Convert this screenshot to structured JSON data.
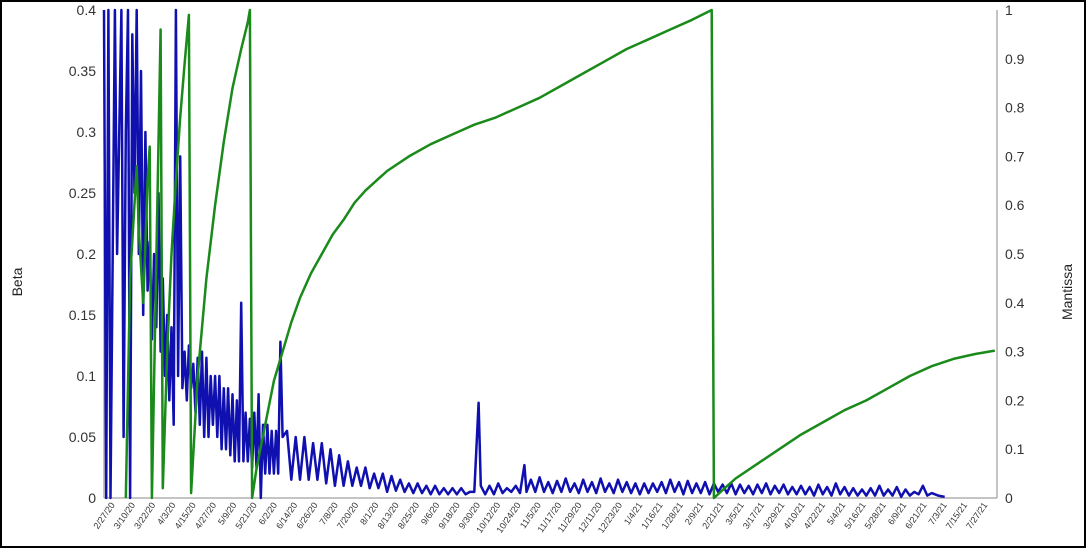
{
  "chart_data": {
    "type": "line",
    "title": "",
    "xlabel": "",
    "ylabel": "Beta",
    "y2label": "Mantissa",
    "ylim": [
      0,
      0.4
    ],
    "y2lim": [
      0,
      1
    ],
    "grid": false,
    "yticks": [
      "0",
      "0.05",
      "0.1",
      "0.15",
      "0.2",
      "0.25",
      "0.3",
      "0.35",
      "0.4"
    ],
    "y2ticks": [
      "0",
      "0.1",
      "0.2",
      "0.3",
      "0.4",
      "0.5",
      "0.6",
      "0.7",
      "0.8",
      "0.9",
      "1"
    ],
    "xticks": [
      "2/27/20",
      "3/10/20",
      "3/22/20",
      "4/3/20",
      "4/15/20",
      "4/27/20",
      "5/9/20",
      "5/21/20",
      "6/2/20",
      "6/14/20",
      "6/26/20",
      "7/8/20",
      "7/20/20",
      "8/1/20",
      "8/13/20",
      "8/25/20",
      "9/6/20",
      "9/18/20",
      "9/30/20",
      "10/12/20",
      "10/24/20",
      "11/5/20",
      "11/17/20",
      "11/29/20",
      "12/11/20",
      "12/23/20",
      "1/4/21",
      "1/16/21",
      "1/28/21",
      "2/9/21",
      "2/21/21",
      "3/5/21",
      "3/17/21",
      "3/29/21",
      "4/10/21",
      "4/22/21",
      "5/4/21",
      "5/16/21",
      "5/28/21",
      "6/9/21",
      "6/21/21",
      "7/3/21",
      "7/15/21",
      "7/27/21"
    ],
    "series": [
      {
        "name": "Beta",
        "axis": "left",
        "color": "#1010b0",
        "points": [
          [
            0,
            0.4
          ],
          [
            1,
            0
          ],
          [
            2,
            0.4
          ],
          [
            3,
            0
          ],
          [
            5,
            0.4
          ],
          [
            6,
            0.2
          ],
          [
            8,
            0.4
          ],
          [
            9,
            0.05
          ],
          [
            10,
            0.3
          ],
          [
            11,
            0.4
          ],
          [
            12,
            0
          ],
          [
            13,
            0.38
          ],
          [
            14,
            0.25
          ],
          [
            15,
            0.4
          ],
          [
            16,
            0.2
          ],
          [
            17,
            0.35
          ],
          [
            18,
            0.15
          ],
          [
            19,
            0.3
          ],
          [
            20,
            0.17
          ],
          [
            21,
            0.21
          ],
          [
            22,
            0.13
          ],
          [
            23,
            0.2
          ],
          [
            24,
            0.14
          ],
          [
            25,
            0.25
          ],
          [
            26,
            0.12
          ],
          [
            27,
            0.18
          ],
          [
            28,
            0.1
          ],
          [
            29,
            0.15
          ],
          [
            30,
            0.08
          ],
          [
            31,
            0.14
          ],
          [
            32,
            0.06
          ],
          [
            33,
            0.4
          ],
          [
            34,
            0.1
          ],
          [
            35,
            0.28
          ],
          [
            36,
            0.09
          ],
          [
            37,
            0.12
          ],
          [
            38,
            0.08
          ],
          [
            39,
            0.125
          ],
          [
            40,
            0.09
          ],
          [
            41,
            0.11
          ],
          [
            42,
            0.07
          ],
          [
            43,
            0.115
          ],
          [
            44,
            0.06
          ],
          [
            45,
            0.12
          ],
          [
            46,
            0.05
          ],
          [
            47,
            0.115
          ],
          [
            48,
            0.05
          ],
          [
            49,
            0.1
          ],
          [
            50,
            0.06
          ],
          [
            51,
            0.1
          ],
          [
            52,
            0.05
          ],
          [
            53,
            0.1
          ],
          [
            54,
            0.04
          ],
          [
            55,
            0.09
          ],
          [
            56,
            0.04
          ],
          [
            57,
            0.09
          ],
          [
            58,
            0.035
          ],
          [
            59,
            0.085
          ],
          [
            60,
            0.03
          ],
          [
            61,
            0.08
          ],
          [
            62,
            0.03
          ],
          [
            63,
            0.16
          ],
          [
            64,
            0.03
          ],
          [
            65,
            0.07
          ],
          [
            66,
            0.03
          ],
          [
            67,
            0.065
          ],
          [
            68,
            0.025
          ],
          [
            69,
            0.07
          ],
          [
            70,
            0.025
          ],
          [
            71,
            0.085
          ],
          [
            72,
            0
          ],
          [
            73,
            0.06
          ],
          [
            74,
            0.02
          ],
          [
            75,
            0.06
          ],
          [
            76,
            0.02
          ],
          [
            77,
            0.055
          ],
          [
            78,
            0.02
          ],
          [
            79,
            0.055
          ],
          [
            80,
            0.02
          ],
          [
            81,
            0.128
          ],
          [
            82,
            0.05
          ],
          [
            84,
            0.055
          ],
          [
            86,
            0.015
          ],
          [
            88,
            0.05
          ],
          [
            90,
            0.015
          ],
          [
            92,
            0.05
          ],
          [
            94,
            0.015
          ],
          [
            96,
            0.045
          ],
          [
            98,
            0.015
          ],
          [
            100,
            0.045
          ],
          [
            102,
            0.012
          ],
          [
            104,
            0.04
          ],
          [
            106,
            0.01
          ],
          [
            108,
            0.035
          ],
          [
            110,
            0.01
          ],
          [
            112,
            0.03
          ],
          [
            114,
            0.01
          ],
          [
            116,
            0.025
          ],
          [
            118,
            0.01
          ],
          [
            120,
            0.025
          ],
          [
            122,
            0.008
          ],
          [
            124,
            0.02
          ],
          [
            126,
            0.008
          ],
          [
            128,
            0.02
          ],
          [
            130,
            0.005
          ],
          [
            132,
            0.018
          ],
          [
            134,
            0.006
          ],
          [
            136,
            0.015
          ],
          [
            138,
            0.005
          ],
          [
            140,
            0.012
          ],
          [
            142,
            0.004
          ],
          [
            144,
            0.012
          ],
          [
            146,
            0.004
          ],
          [
            148,
            0.01
          ],
          [
            150,
            0.003
          ],
          [
            152,
            0.01
          ],
          [
            154,
            0.003
          ],
          [
            156,
            0.008
          ],
          [
            158,
            0.003
          ],
          [
            160,
            0.008
          ],
          [
            162,
            0.003
          ],
          [
            164,
            0.008
          ],
          [
            166,
            0.003
          ],
          [
            168,
            0.005
          ],
          [
            170,
            0.005
          ],
          [
            172,
            0.078
          ],
          [
            173,
            0.01
          ],
          [
            175,
            0.003
          ],
          [
            177,
            0.01
          ],
          [
            179,
            0.003
          ],
          [
            181,
            0.012
          ],
          [
            183,
            0.004
          ],
          [
            185,
            0.008
          ],
          [
            187,
            0.005
          ],
          [
            189,
            0.01
          ],
          [
            191,
            0.004
          ],
          [
            193,
            0.027
          ],
          [
            194,
            0.005
          ],
          [
            196,
            0.015
          ],
          [
            198,
            0.005
          ],
          [
            200,
            0.017
          ],
          [
            202,
            0.005
          ],
          [
            204,
            0.013
          ],
          [
            206,
            0.004
          ],
          [
            208,
            0.014
          ],
          [
            210,
            0.005
          ],
          [
            212,
            0.016
          ],
          [
            214,
            0.005
          ],
          [
            216,
            0.012
          ],
          [
            218,
            0.004
          ],
          [
            220,
            0.015
          ],
          [
            222,
            0.005
          ],
          [
            224,
            0.013
          ],
          [
            226,
            0.004
          ],
          [
            228,
            0.016
          ],
          [
            230,
            0.005
          ],
          [
            232,
            0.012
          ],
          [
            234,
            0.004
          ],
          [
            236,
            0.015
          ],
          [
            238,
            0.005
          ],
          [
            240,
            0.013
          ],
          [
            242,
            0.004
          ],
          [
            244,
            0.012
          ],
          [
            246,
            0.003
          ],
          [
            248,
            0.012
          ],
          [
            250,
            0.004
          ],
          [
            252,
            0.012
          ],
          [
            254,
            0.005
          ],
          [
            256,
            0.013
          ],
          [
            258,
            0.004
          ],
          [
            260,
            0.015
          ],
          [
            262,
            0.005
          ],
          [
            264,
            0.013
          ],
          [
            266,
            0.003
          ],
          [
            268,
            0.014
          ],
          [
            270,
            0.004
          ],
          [
            272,
            0.012
          ],
          [
            274,
            0.004
          ],
          [
            276,
            0.013
          ],
          [
            278,
            0.003
          ],
          [
            280,
            0.012
          ],
          [
            282,
            0.005
          ],
          [
            284,
            0.011
          ],
          [
            286,
            0.004
          ],
          [
            288,
            0.012
          ],
          [
            290,
            0.003
          ],
          [
            292,
            0.011
          ],
          [
            294,
            0.004
          ],
          [
            296,
            0.01
          ],
          [
            298,
            0.003
          ],
          [
            300,
            0.011
          ],
          [
            302,
            0.004
          ],
          [
            304,
            0.012
          ],
          [
            306,
            0.003
          ],
          [
            308,
            0.01
          ],
          [
            310,
            0.004
          ],
          [
            312,
            0.011
          ],
          [
            314,
            0.003
          ],
          [
            316,
            0.009
          ],
          [
            318,
            0.003
          ],
          [
            320,
            0.01
          ],
          [
            322,
            0.003
          ],
          [
            324,
            0.009
          ],
          [
            326,
            0.002
          ],
          [
            328,
            0.011
          ],
          [
            330,
            0.003
          ],
          [
            332,
            0.009
          ],
          [
            334,
            0.002
          ],
          [
            336,
            0.012
          ],
          [
            338,
            0.003
          ],
          [
            340,
            0.009
          ],
          [
            342,
            0.002
          ],
          [
            344,
            0.008
          ],
          [
            346,
            0.002
          ],
          [
            348,
            0.007
          ],
          [
            350,
            0.002
          ],
          [
            352,
            0.008
          ],
          [
            354,
            0.002
          ],
          [
            356,
            0.01
          ],
          [
            358,
            0.002
          ],
          [
            360,
            0.007
          ],
          [
            362,
            0.002
          ],
          [
            364,
            0.009
          ],
          [
            366,
            0.001
          ],
          [
            368,
            0.007
          ],
          [
            370,
            0.002
          ],
          [
            372,
            0.005
          ],
          [
            374,
            0.003
          ],
          [
            376,
            0.01
          ],
          [
            378,
            0.002
          ],
          [
            380,
            0.004
          ],
          [
            383,
            0.002
          ],
          [
            386,
            0.001
          ]
        ]
      },
      {
        "name": "Mantissa",
        "axis": "right",
        "color": "#1a8a1a",
        "points": [
          [
            10,
            0
          ],
          [
            12,
            0.45
          ],
          [
            15,
            0.68
          ],
          [
            16,
            0.55
          ],
          [
            18,
            0.4
          ],
          [
            19,
            0.52
          ],
          [
            20,
            0.65
          ],
          [
            21,
            0.72
          ],
          [
            22,
            0
          ],
          [
            26,
            0.96
          ],
          [
            27,
            0.02
          ],
          [
            29,
            0.3
          ],
          [
            31,
            0.5
          ],
          [
            33,
            0.65
          ],
          [
            35,
            0.78
          ],
          [
            37,
            0.89
          ],
          [
            39,
            0.99
          ],
          [
            40,
            0.01
          ],
          [
            43,
            0.25
          ],
          [
            47,
            0.45
          ],
          [
            51,
            0.6
          ],
          [
            55,
            0.73
          ],
          [
            59,
            0.84
          ],
          [
            63,
            0.92
          ],
          [
            66,
            0.975
          ],
          [
            67,
            1.0
          ],
          [
            68,
            0
          ],
          [
            70,
            0.06
          ],
          [
            74,
            0.15
          ],
          [
            78,
            0.24
          ],
          [
            82,
            0.3
          ],
          [
            86,
            0.36
          ],
          [
            90,
            0.41
          ],
          [
            95,
            0.46
          ],
          [
            100,
            0.5
          ],
          [
            105,
            0.54
          ],
          [
            110,
            0.57
          ],
          [
            115,
            0.605
          ],
          [
            120,
            0.63
          ],
          [
            130,
            0.67
          ],
          [
            140,
            0.7
          ],
          [
            150,
            0.725
          ],
          [
            160,
            0.745
          ],
          [
            170,
            0.765
          ],
          [
            180,
            0.78
          ],
          [
            190,
            0.8
          ],
          [
            200,
            0.82
          ],
          [
            210,
            0.845
          ],
          [
            220,
            0.87
          ],
          [
            230,
            0.895
          ],
          [
            240,
            0.92
          ],
          [
            250,
            0.94
          ],
          [
            260,
            0.96
          ],
          [
            270,
            0.98
          ],
          [
            279,
            1.0
          ],
          [
            280,
            0
          ],
          [
            285,
            0.02
          ],
          [
            290,
            0.04
          ],
          [
            300,
            0.07
          ],
          [
            310,
            0.1
          ],
          [
            320,
            0.13
          ],
          [
            330,
            0.155
          ],
          [
            340,
            0.18
          ],
          [
            350,
            0.2
          ],
          [
            360,
            0.225
          ],
          [
            370,
            0.25
          ],
          [
            380,
            0.27
          ],
          [
            390,
            0.285
          ],
          [
            400,
            0.295
          ],
          [
            409,
            0.302
          ]
        ]
      }
    ]
  }
}
